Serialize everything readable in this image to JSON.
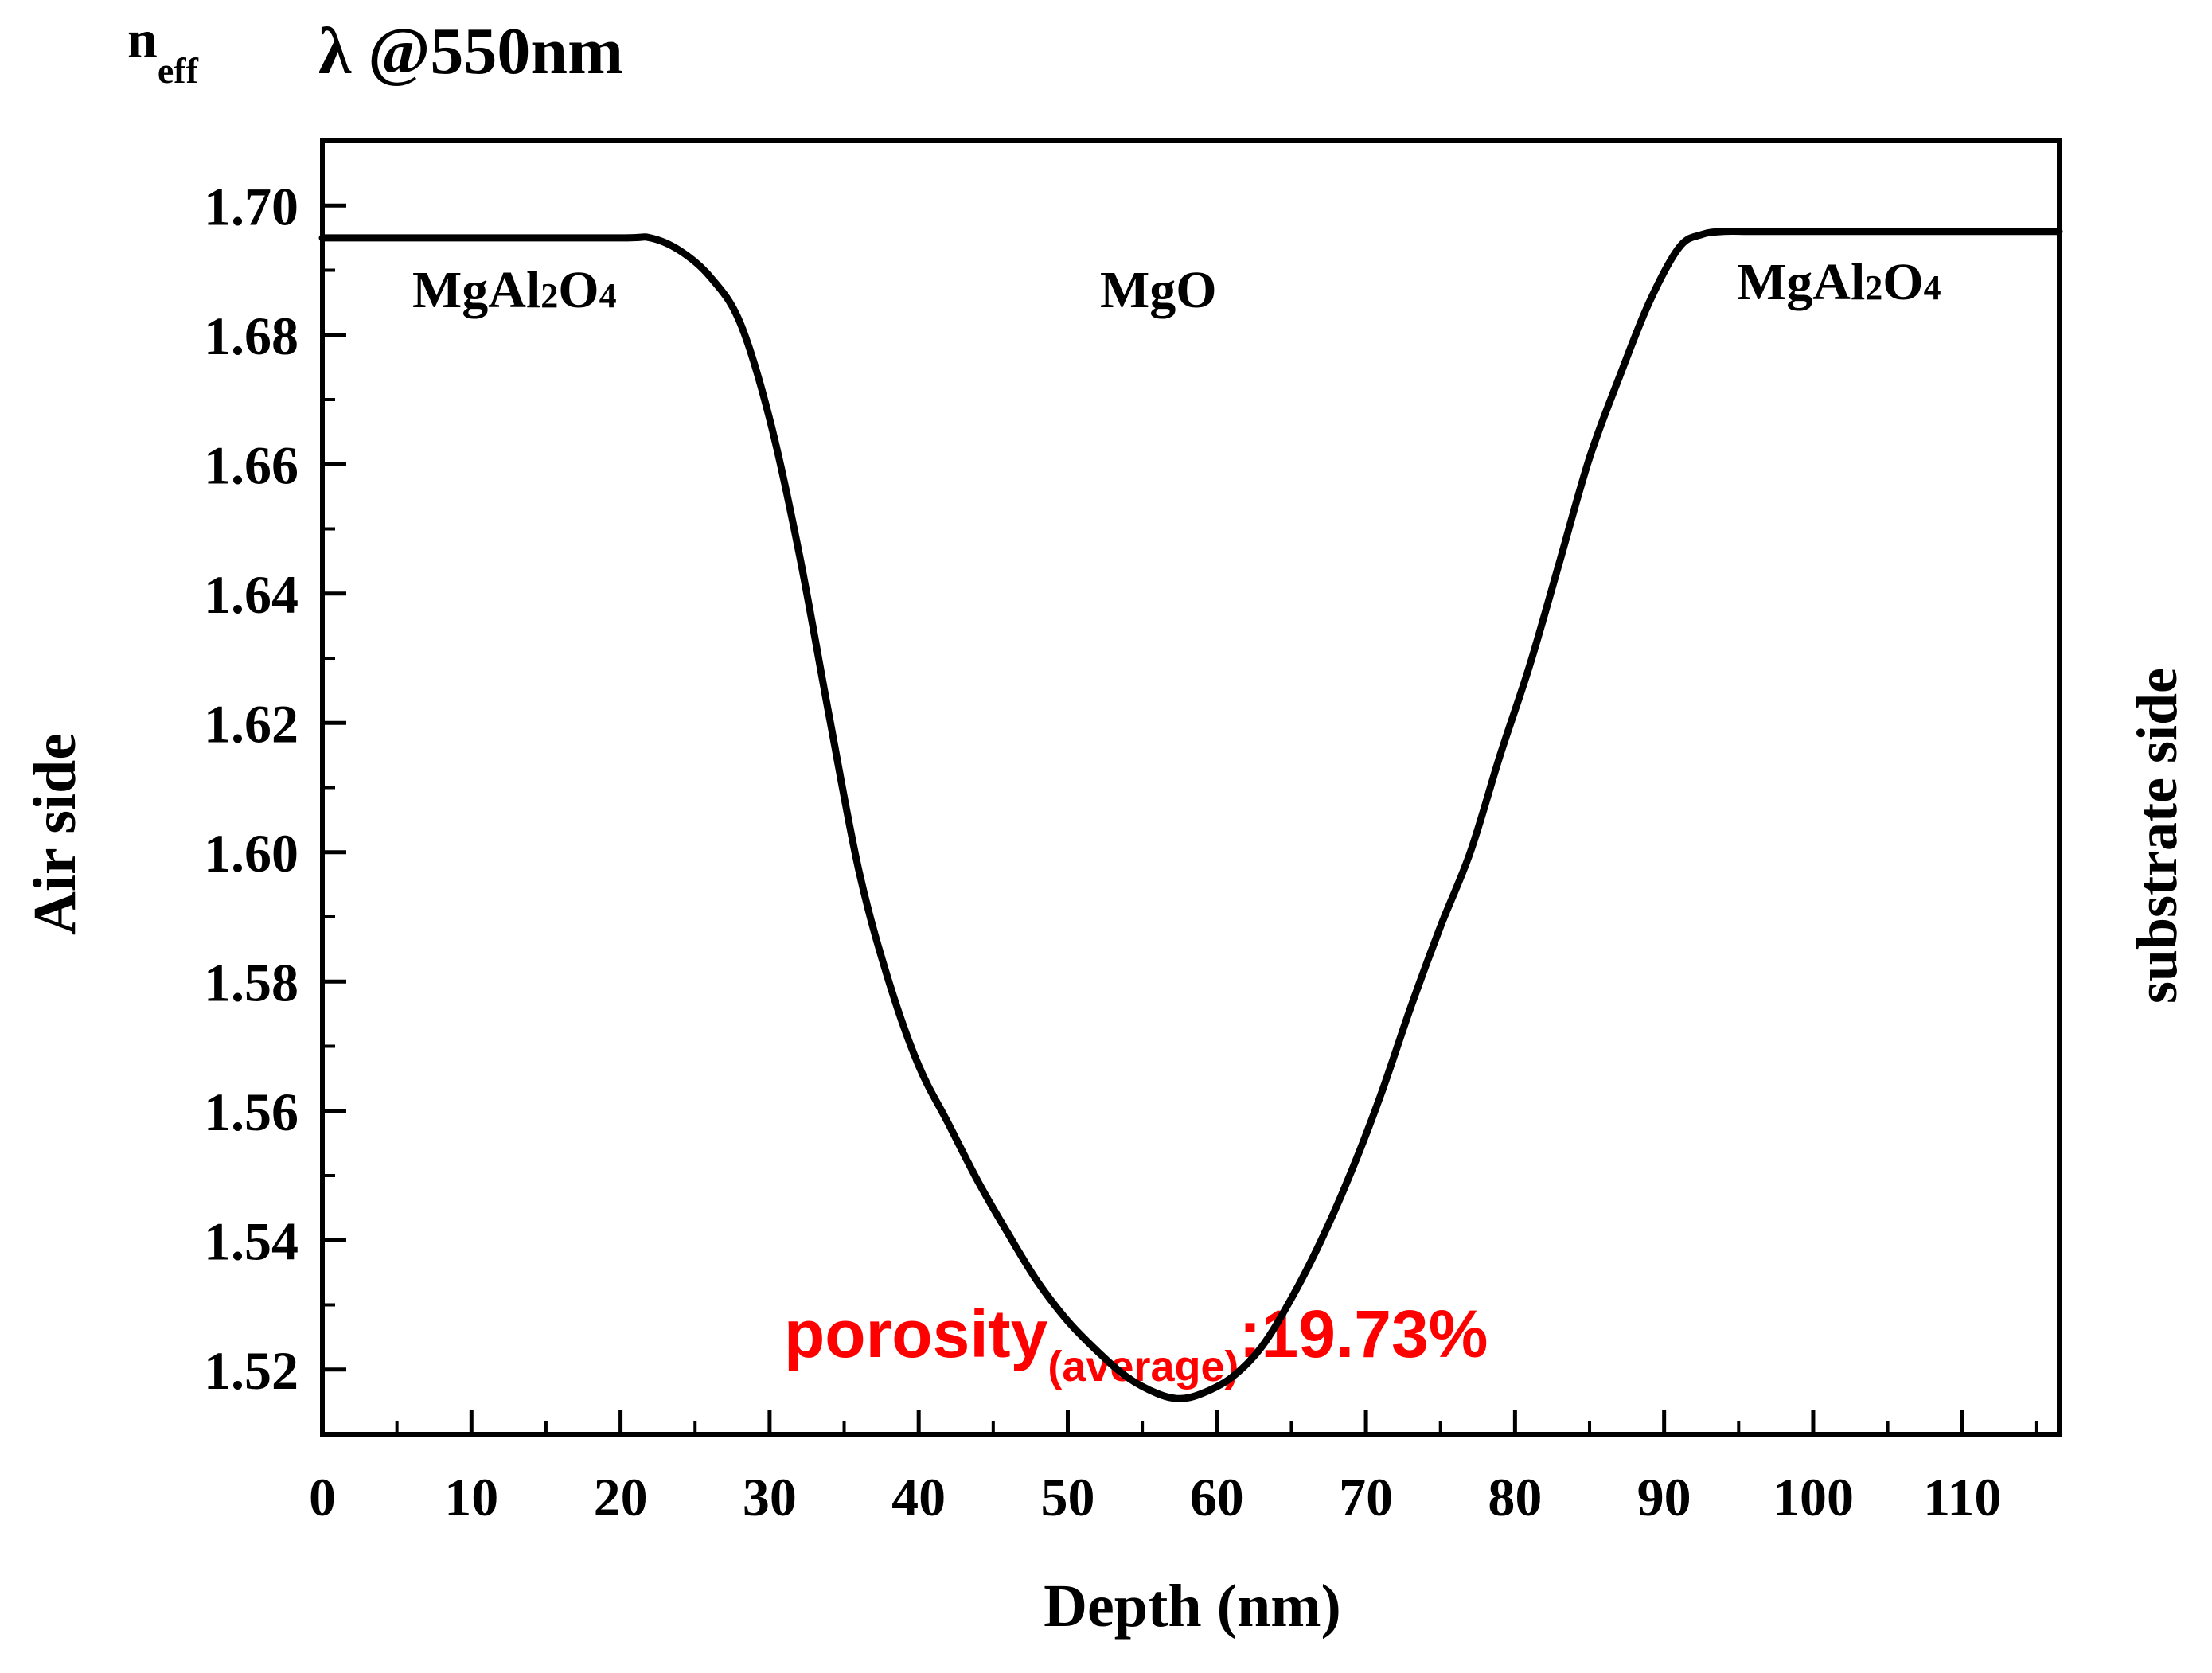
{
  "chart_data": {
    "type": "line",
    "title_symbol": "n",
    "title_subscript": "eff",
    "wavelength_label": "λ @550nm",
    "xlabel": "Depth (nm)",
    "ylabel_left": "Air side",
    "ylabel_right": "substrate side",
    "xlim": [
      0,
      116.5
    ],
    "ylim": [
      1.51,
      1.71
    ],
    "x_ticks": [
      0,
      10,
      20,
      30,
      40,
      50,
      60,
      70,
      80,
      90,
      100,
      110
    ],
    "x_tick_labels": [
      "0",
      "10",
      "20",
      "30",
      "40",
      "50",
      "60",
      "70",
      "80",
      "90",
      "100",
      "110"
    ],
    "y_ticks": [
      1.52,
      1.54,
      1.56,
      1.58,
      1.6,
      1.62,
      1.64,
      1.66,
      1.68,
      1.7
    ],
    "y_tick_labels": [
      "1.52",
      "1.54",
      "1.56",
      "1.58",
      "1.60",
      "1.62",
      "1.64",
      "1.66",
      "1.68",
      "1.70"
    ],
    "grid": false,
    "series": [
      {
        "name": "n_eff profile",
        "color": "#000000",
        "x": [
          0,
          10,
          20,
          22,
          24,
          26,
          28,
          30,
          32,
          34,
          36,
          38,
          40,
          42,
          44,
          46,
          48,
          50,
          52,
          54,
          56,
          57.5,
          59,
          61,
          63,
          65,
          67,
          69,
          71,
          73,
          75,
          77,
          79,
          81,
          83,
          85,
          87,
          89,
          91,
          92.5,
          94,
          96,
          100,
          110,
          116.5
        ],
        "y": [
          1.695,
          1.695,
          1.695,
          1.695,
          1.693,
          1.689,
          1.682,
          1.667,
          1.646,
          1.621,
          1.597,
          1.58,
          1.567,
          1.558,
          1.549,
          1.541,
          1.5335,
          1.5275,
          1.5228,
          1.5188,
          1.5163,
          1.5155,
          1.5163,
          1.5188,
          1.5235,
          1.531,
          1.54,
          1.5505,
          1.5625,
          1.576,
          1.5885,
          1.6,
          1.615,
          1.629,
          1.645,
          1.661,
          1.6735,
          1.685,
          1.6935,
          1.6955,
          1.696,
          1.696,
          1.696,
          1.696,
          1.696
        ]
      }
    ],
    "annotations": {
      "left_region": {
        "main": "MgAl",
        "sub1": "2",
        "mid": "O",
        "sub2": "4"
      },
      "center_region": "MgO",
      "right_region": {
        "main": "MgAl",
        "sub1": "2",
        "mid": "O",
        "sub2": "4"
      },
      "porosity": {
        "prefix": "porosity",
        "subscript": "(average)",
        "suffix": ":19.73%",
        "color": "#ff0000"
      }
    }
  }
}
